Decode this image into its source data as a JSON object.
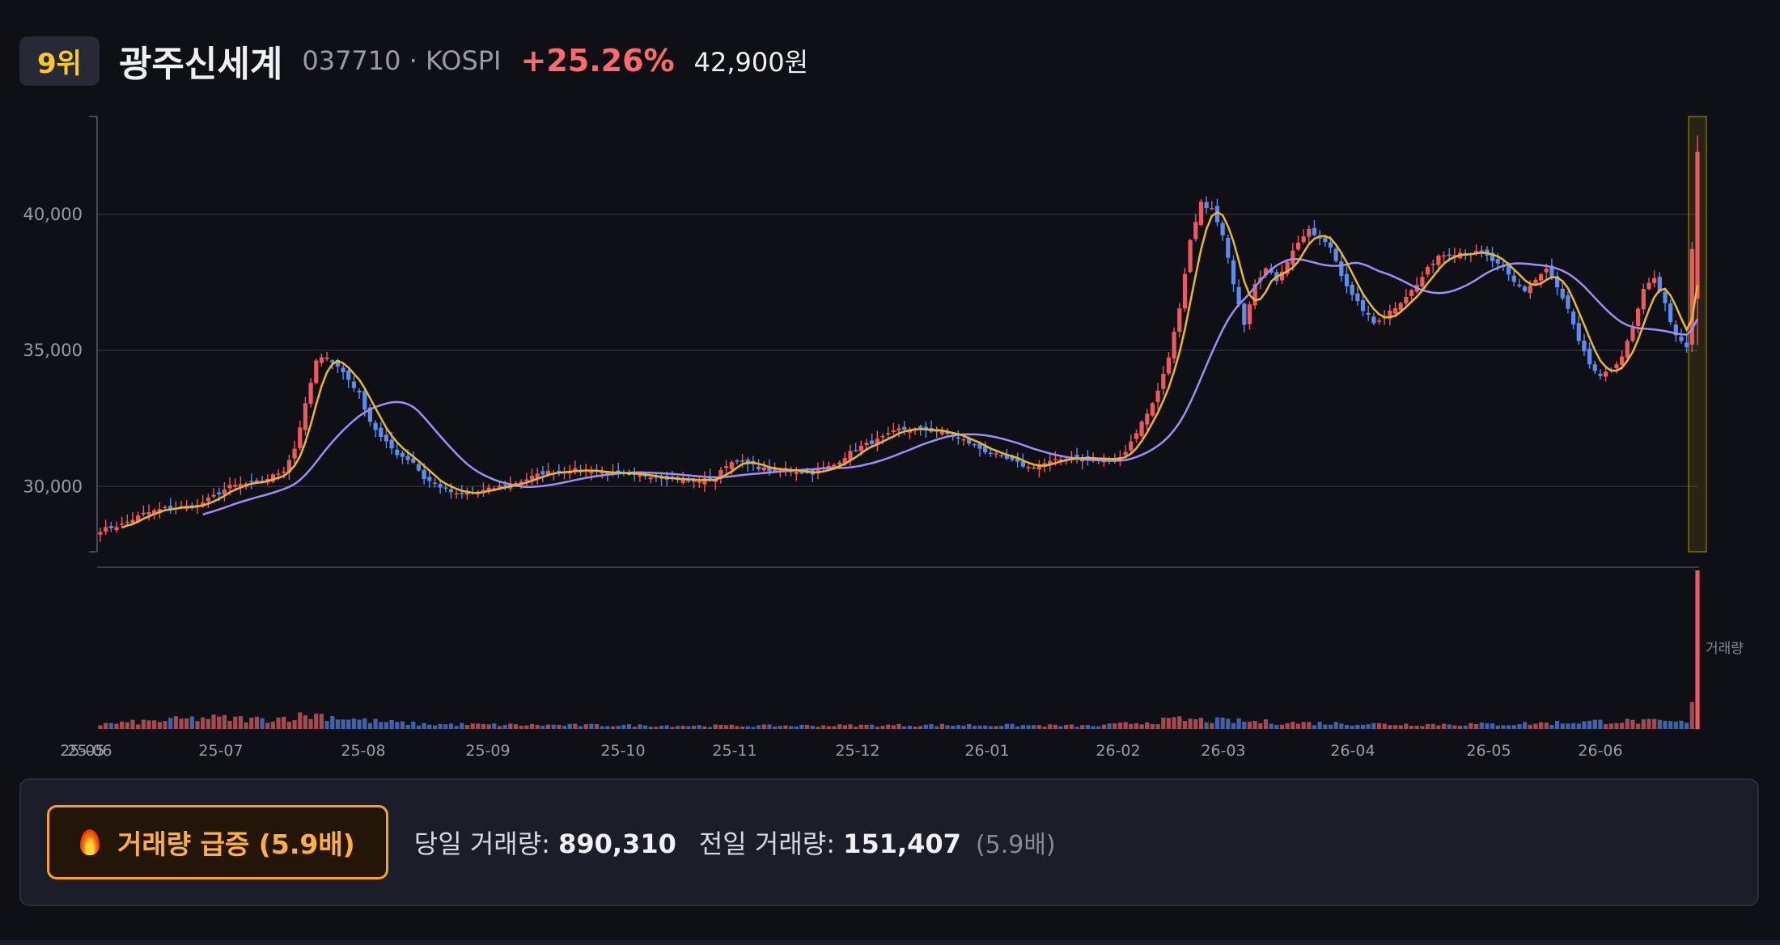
{
  "stock": {
    "rank": "9위",
    "name": "광주신세계",
    "code_market": "037710 · KOSPI",
    "change": "+25.26%",
    "price": "42,900원"
  },
  "chart_data": {
    "type": "candlestick",
    "title": "",
    "xlabel": "",
    "ylabel": "",
    "ylim": [
      27600,
      43600
    ],
    "yticks": [
      30000,
      35000,
      40000
    ],
    "ytick_labels": [
      "30,000",
      "35,000",
      "40,000"
    ],
    "x_month_labels": [
      "25-05",
      "25-06",
      "25-07",
      "25-08",
      "25-09",
      "25-10",
      "25-11",
      "25-12",
      "26-01",
      "26-02",
      "26-03",
      "26-04",
      "26-05",
      "26-06"
    ],
    "volume_label": "거래량",
    "colors": {
      "up": "#f0585e",
      "down": "#5b8df0",
      "ma_short": "#e9b828",
      "ma_long": "#9b8ff5",
      "highlight": "#c9b200",
      "grid": "#2a2d3a",
      "axis": "#555866"
    },
    "close_path": [
      [
        0,
        28400
      ],
      [
        4,
        28600
      ],
      [
        8,
        29000
      ],
      [
        12,
        29200
      ],
      [
        18,
        29300
      ],
      [
        24,
        30000
      ],
      [
        30,
        30200
      ],
      [
        34,
        30600
      ],
      [
        36,
        31400
      ],
      [
        38,
        33000
      ],
      [
        40,
        34600
      ],
      [
        42,
        34800
      ],
      [
        45,
        34200
      ],
      [
        48,
        33400
      ],
      [
        50,
        32400
      ],
      [
        52,
        31800
      ],
      [
        55,
        31200
      ],
      [
        58,
        30900
      ],
      [
        60,
        30300
      ],
      [
        63,
        30000
      ],
      [
        66,
        29700
      ],
      [
        70,
        29800
      ],
      [
        74,
        30000
      ],
      [
        78,
        30200
      ],
      [
        82,
        30500
      ],
      [
        86,
        30600
      ],
      [
        90,
        30600
      ],
      [
        94,
        30500
      ],
      [
        98,
        30400
      ],
      [
        102,
        30400
      ],
      [
        106,
        30300
      ],
      [
        110,
        30200
      ],
      [
        114,
        30300
      ],
      [
        116,
        30800
      ],
      [
        118,
        31000
      ],
      [
        120,
        30800
      ],
      [
        124,
        30600
      ],
      [
        128,
        30600
      ],
      [
        132,
        30500
      ],
      [
        136,
        30800
      ],
      [
        140,
        31400
      ],
      [
        144,
        31700
      ],
      [
        148,
        32100
      ],
      [
        152,
        32100
      ],
      [
        156,
        32000
      ],
      [
        160,
        31700
      ],
      [
        164,
        31300
      ],
      [
        168,
        31000
      ],
      [
        172,
        30700
      ],
      [
        176,
        30900
      ],
      [
        180,
        31100
      ],
      [
        184,
        31000
      ],
      [
        188,
        31000
      ],
      [
        190,
        31300
      ],
      [
        192,
        32000
      ],
      [
        194,
        32700
      ],
      [
        196,
        33500
      ],
      [
        198,
        34800
      ],
      [
        200,
        36500
      ],
      [
        202,
        39000
      ],
      [
        204,
        40400
      ],
      [
        206,
        40200
      ],
      [
        208,
        39200
      ],
      [
        210,
        37500
      ],
      [
        212,
        36000
      ],
      [
        214,
        37500
      ],
      [
        216,
        38000
      ],
      [
        218,
        37600
      ],
      [
        220,
        38300
      ],
      [
        222,
        39000
      ],
      [
        224,
        39400
      ],
      [
        226,
        39100
      ],
      [
        228,
        38800
      ],
      [
        230,
        37800
      ],
      [
        232,
        37000
      ],
      [
        234,
        36500
      ],
      [
        236,
        36000
      ],
      [
        238,
        36300
      ],
      [
        240,
        36600
      ],
      [
        242,
        37000
      ],
      [
        244,
        37400
      ],
      [
        246,
        38000
      ],
      [
        248,
        38500
      ],
      [
        252,
        38600
      ],
      [
        256,
        38600
      ],
      [
        260,
        38000
      ],
      [
        262,
        37500
      ],
      [
        264,
        37200
      ],
      [
        266,
        37600
      ],
      [
        268,
        38000
      ],
      [
        270,
        37300
      ],
      [
        272,
        36500
      ],
      [
        274,
        35300
      ],
      [
        276,
        34500
      ],
      [
        278,
        34000
      ],
      [
        280,
        34300
      ],
      [
        282,
        34800
      ],
      [
        284,
        35800
      ],
      [
        286,
        37200
      ],
      [
        288,
        37700
      ],
      [
        290,
        36700
      ],
      [
        292,
        35500
      ],
      [
        294,
        35100
      ],
      [
        296,
        42300
      ]
    ],
    "volume_path": [
      [
        0,
        0.03
      ],
      [
        10,
        0.05
      ],
      [
        20,
        0.07
      ],
      [
        30,
        0.06
      ],
      [
        40,
        0.09
      ],
      [
        50,
        0.05
      ],
      [
        60,
        0.03
      ],
      [
        80,
        0.025
      ],
      [
        120,
        0.02
      ],
      [
        160,
        0.025
      ],
      [
        185,
        0.02
      ],
      [
        200,
        0.06
      ],
      [
        220,
        0.04
      ],
      [
        240,
        0.03
      ],
      [
        260,
        0.03
      ],
      [
        280,
        0.05
      ],
      [
        290,
        0.045
      ],
      [
        294,
        0.04
      ],
      [
        295,
        0.17
      ],
      [
        296,
        1.0
      ]
    ]
  },
  "alert": {
    "label": "거래량 급증 (5.9배)"
  },
  "volume_stats": {
    "today_label": "당일 거래량:",
    "today_value": "890,310",
    "prev_label": "전일 거래량:",
    "prev_value": "151,407",
    "ratio": "(5.9배)"
  }
}
